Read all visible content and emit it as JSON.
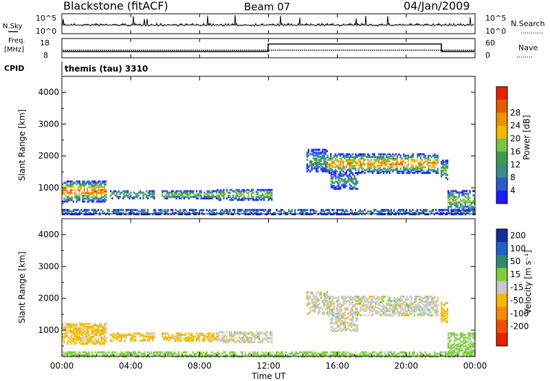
{
  "header": {
    "station": "Blackstone (fitACF)",
    "beam": "Beam 07",
    "date": "04/Jan/2009"
  },
  "panels": {
    "noise": {
      "left_label": "N.Sky",
      "right_label": "N.Search",
      "left_ticks": [
        "10^5",
        "10^0"
      ],
      "right_ticks": [
        "10^5",
        "10^0"
      ]
    },
    "freq": {
      "left_label_top": "Freq.",
      "left_label_unit": "[MHz]",
      "right_label": "Nave",
      "left_ticks": [
        "18",
        "8"
      ],
      "right_ticks": [
        "60",
        "0"
      ]
    },
    "cpid": {
      "label": "CPID",
      "program": "themis (tau) 3310"
    }
  },
  "colors": {
    "power_scale": [
      "#1a1aff",
      "#2a5ad0",
      "#3c8c8c",
      "#3f9b4f",
      "#7ec242",
      "#f0b800",
      "#f09000",
      "#e85a00",
      "#e62000"
    ],
    "velocity_scale": [
      "#1a2aa0",
      "#2060c8",
      "#2e8a6e",
      "#7ccf3a",
      "#c8c8c8",
      "#f5b800",
      "#f58a00",
      "#ef5000",
      "#e62000"
    ]
  },
  "chart_data": [
    {
      "type": "heatmap",
      "name": "power",
      "ylabel": "Slant Range [km]",
      "colorbar_label": "Power [dB]",
      "colorbar_ticks": [
        "4",
        "8",
        "12",
        "16",
        "20",
        "24",
        "28"
      ],
      "ylim": [
        180,
        4500
      ],
      "yticks": [
        1000,
        2000,
        3000,
        4000
      ],
      "ytick_labels": [
        "1000",
        "2000",
        "3000",
        "4000"
      ],
      "xlim": [
        0,
        24
      ],
      "scatter_regions": [
        {
          "t0": 0.0,
          "t1": 2.6,
          "r0": 600,
          "r1": 1250,
          "peak": 24
        },
        {
          "t0": 2.8,
          "t1": 5.4,
          "r0": 700,
          "r1": 950,
          "peak": 12
        },
        {
          "t0": 5.8,
          "t1": 9.0,
          "r0": 700,
          "r1": 950,
          "peak": 14
        },
        {
          "t0": 9.0,
          "t1": 12.2,
          "r0": 650,
          "r1": 1000,
          "peak": 14
        },
        {
          "t0": 0.0,
          "t1": 24.0,
          "r0": 200,
          "r1": 350,
          "peak": 10
        },
        {
          "t0": 14.2,
          "t1": 15.4,
          "r0": 1550,
          "r1": 2250,
          "peak": 10
        },
        {
          "t0": 15.4,
          "t1": 21.8,
          "r0": 1500,
          "r1": 2100,
          "peak": 22
        },
        {
          "t0": 15.6,
          "t1": 17.2,
          "r0": 1000,
          "r1": 1500,
          "peak": 10
        },
        {
          "t0": 22.0,
          "t1": 22.4,
          "r0": 1300,
          "r1": 1900,
          "peak": 14
        },
        {
          "t0": 22.4,
          "t1": 24.0,
          "r0": 300,
          "r1": 950,
          "peak": 14
        }
      ]
    },
    {
      "type": "heatmap",
      "name": "velocity",
      "ylabel": "Slant Range [km]",
      "colorbar_label": "Velocity [m s⁻¹]",
      "colorbar_ticks": [
        "200",
        "100",
        "50",
        "15",
        "-15",
        "-50",
        "-100",
        "-200"
      ],
      "ylim": [
        180,
        4500
      ],
      "yticks": [
        1000,
        2000,
        3000,
        4000
      ],
      "ytick_labels": [
        "1000",
        "2000",
        "3000",
        "4000"
      ],
      "xlim": [
        0,
        24
      ],
      "xticks": [
        0,
        4,
        8,
        12,
        16,
        20,
        24
      ],
      "xtick_labels": [
        "00:00",
        "04:00",
        "08:00",
        "12:00",
        "16:00",
        "20:00",
        "00:00"
      ],
      "xlabel": "Time UT",
      "scatter_regions": [
        {
          "t0": 0.0,
          "t1": 2.6,
          "r0": 600,
          "r1": 1250,
          "vel": -30
        },
        {
          "t0": 2.8,
          "t1": 5.4,
          "r0": 700,
          "r1": 950,
          "vel": -30
        },
        {
          "t0": 5.8,
          "t1": 9.0,
          "r0": 700,
          "r1": 950,
          "vel": -30
        },
        {
          "t0": 9.0,
          "t1": 12.2,
          "r0": 650,
          "r1": 1000,
          "vel": 0
        },
        {
          "t0": 0.0,
          "t1": 24.0,
          "r0": 200,
          "r1": 350,
          "vel": 30
        },
        {
          "t0": 14.2,
          "t1": 15.4,
          "r0": 1550,
          "r1": 2250,
          "vel": 0
        },
        {
          "t0": 15.4,
          "t1": 21.8,
          "r0": 1500,
          "r1": 2100,
          "vel": 0
        },
        {
          "t0": 15.6,
          "t1": 17.2,
          "r0": 1000,
          "r1": 1500,
          "vel": 0
        },
        {
          "t0": 22.0,
          "t1": 22.4,
          "r0": 1300,
          "r1": 1900,
          "vel": -30
        },
        {
          "t0": 22.4,
          "t1": 24.0,
          "r0": 300,
          "r1": 950,
          "vel": 30
        }
      ]
    }
  ]
}
